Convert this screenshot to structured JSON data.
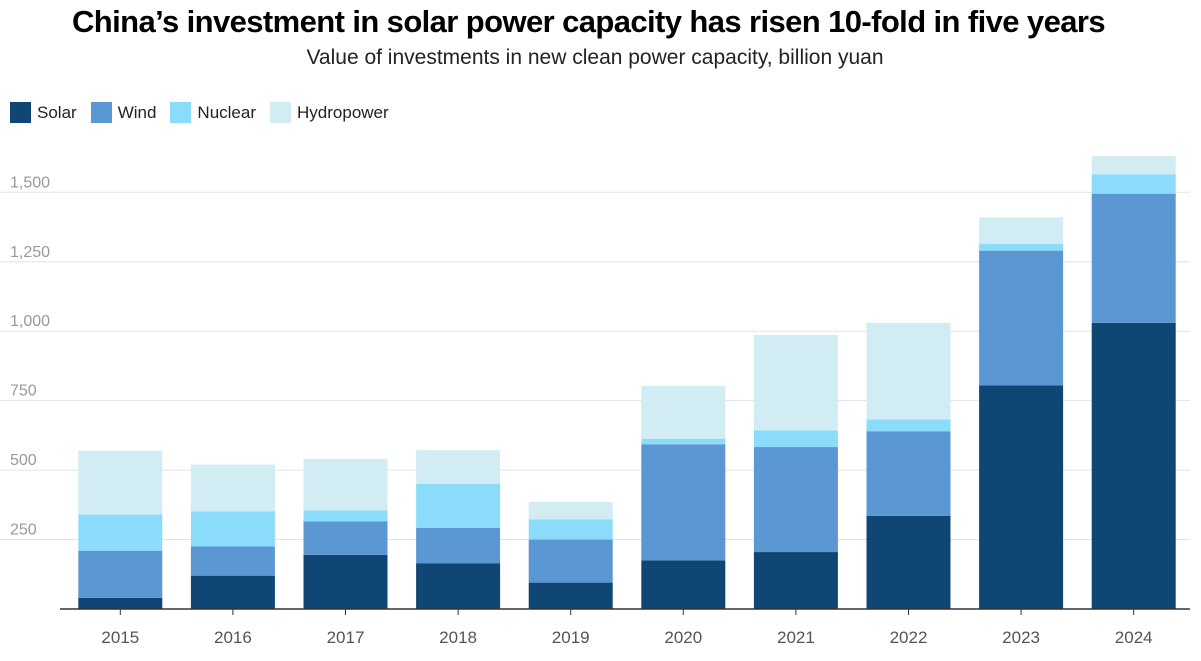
{
  "title": "China’s investment in solar power capacity has risen 10-fold in five years",
  "subtitle": "Value of investments in new clean power capacity, billion yuan",
  "colors": {
    "Solar": "#0f4673",
    "Wind": "#5b97d3",
    "Nuclear": "#8bdcfb",
    "Hydropower": "#d1ecf3",
    "grid": "#e3e3e3",
    "axis": "#333333",
    "tick_text": "#999999",
    "xtick_text": "#555555"
  },
  "legend": [
    {
      "label": "Solar",
      "color": "#0f4673"
    },
    {
      "label": "Wind",
      "color": "#5b97d3"
    },
    {
      "label": "Nuclear",
      "color": "#8bdcfb"
    },
    {
      "label": "Hydropower",
      "color": "#d1ecf3"
    }
  ],
  "chart_data": {
    "type": "bar",
    "stacked": true,
    "title": "China’s investment in solar power capacity has risen 10-fold in five years",
    "subtitle": "Value of investments in new clean power capacity, billion yuan",
    "xlabel": "",
    "ylabel": "",
    "categories": [
      "2015",
      "2016",
      "2017",
      "2018",
      "2019",
      "2020",
      "2021",
      "2022",
      "2023",
      "2024"
    ],
    "series": [
      {
        "name": "Solar",
        "values": [
          40,
          120,
          195,
          165,
          95,
          175,
          205,
          335,
          805,
          1030
        ]
      },
      {
        "name": "Wind",
        "values": [
          170,
          105,
          120,
          127,
          155,
          418,
          378,
          305,
          485,
          465
        ]
      },
      {
        "name": "Nuclear",
        "values": [
          130,
          127,
          40,
          158,
          73,
          20,
          60,
          42,
          25,
          70
        ]
      },
      {
        "name": "Hydropower",
        "values": [
          230,
          168,
          185,
          122,
          62,
          190,
          343,
          348,
          95,
          65
        ]
      }
    ],
    "ylim": [
      0,
      1650
    ],
    "yticks": [
      250,
      500,
      750,
      1000,
      1250,
      1500
    ],
    "ytick_labels": [
      "250",
      "500",
      "750",
      "1,000",
      "1,250",
      "1,500"
    ],
    "grid": true,
    "legend_position": "top-left"
  }
}
